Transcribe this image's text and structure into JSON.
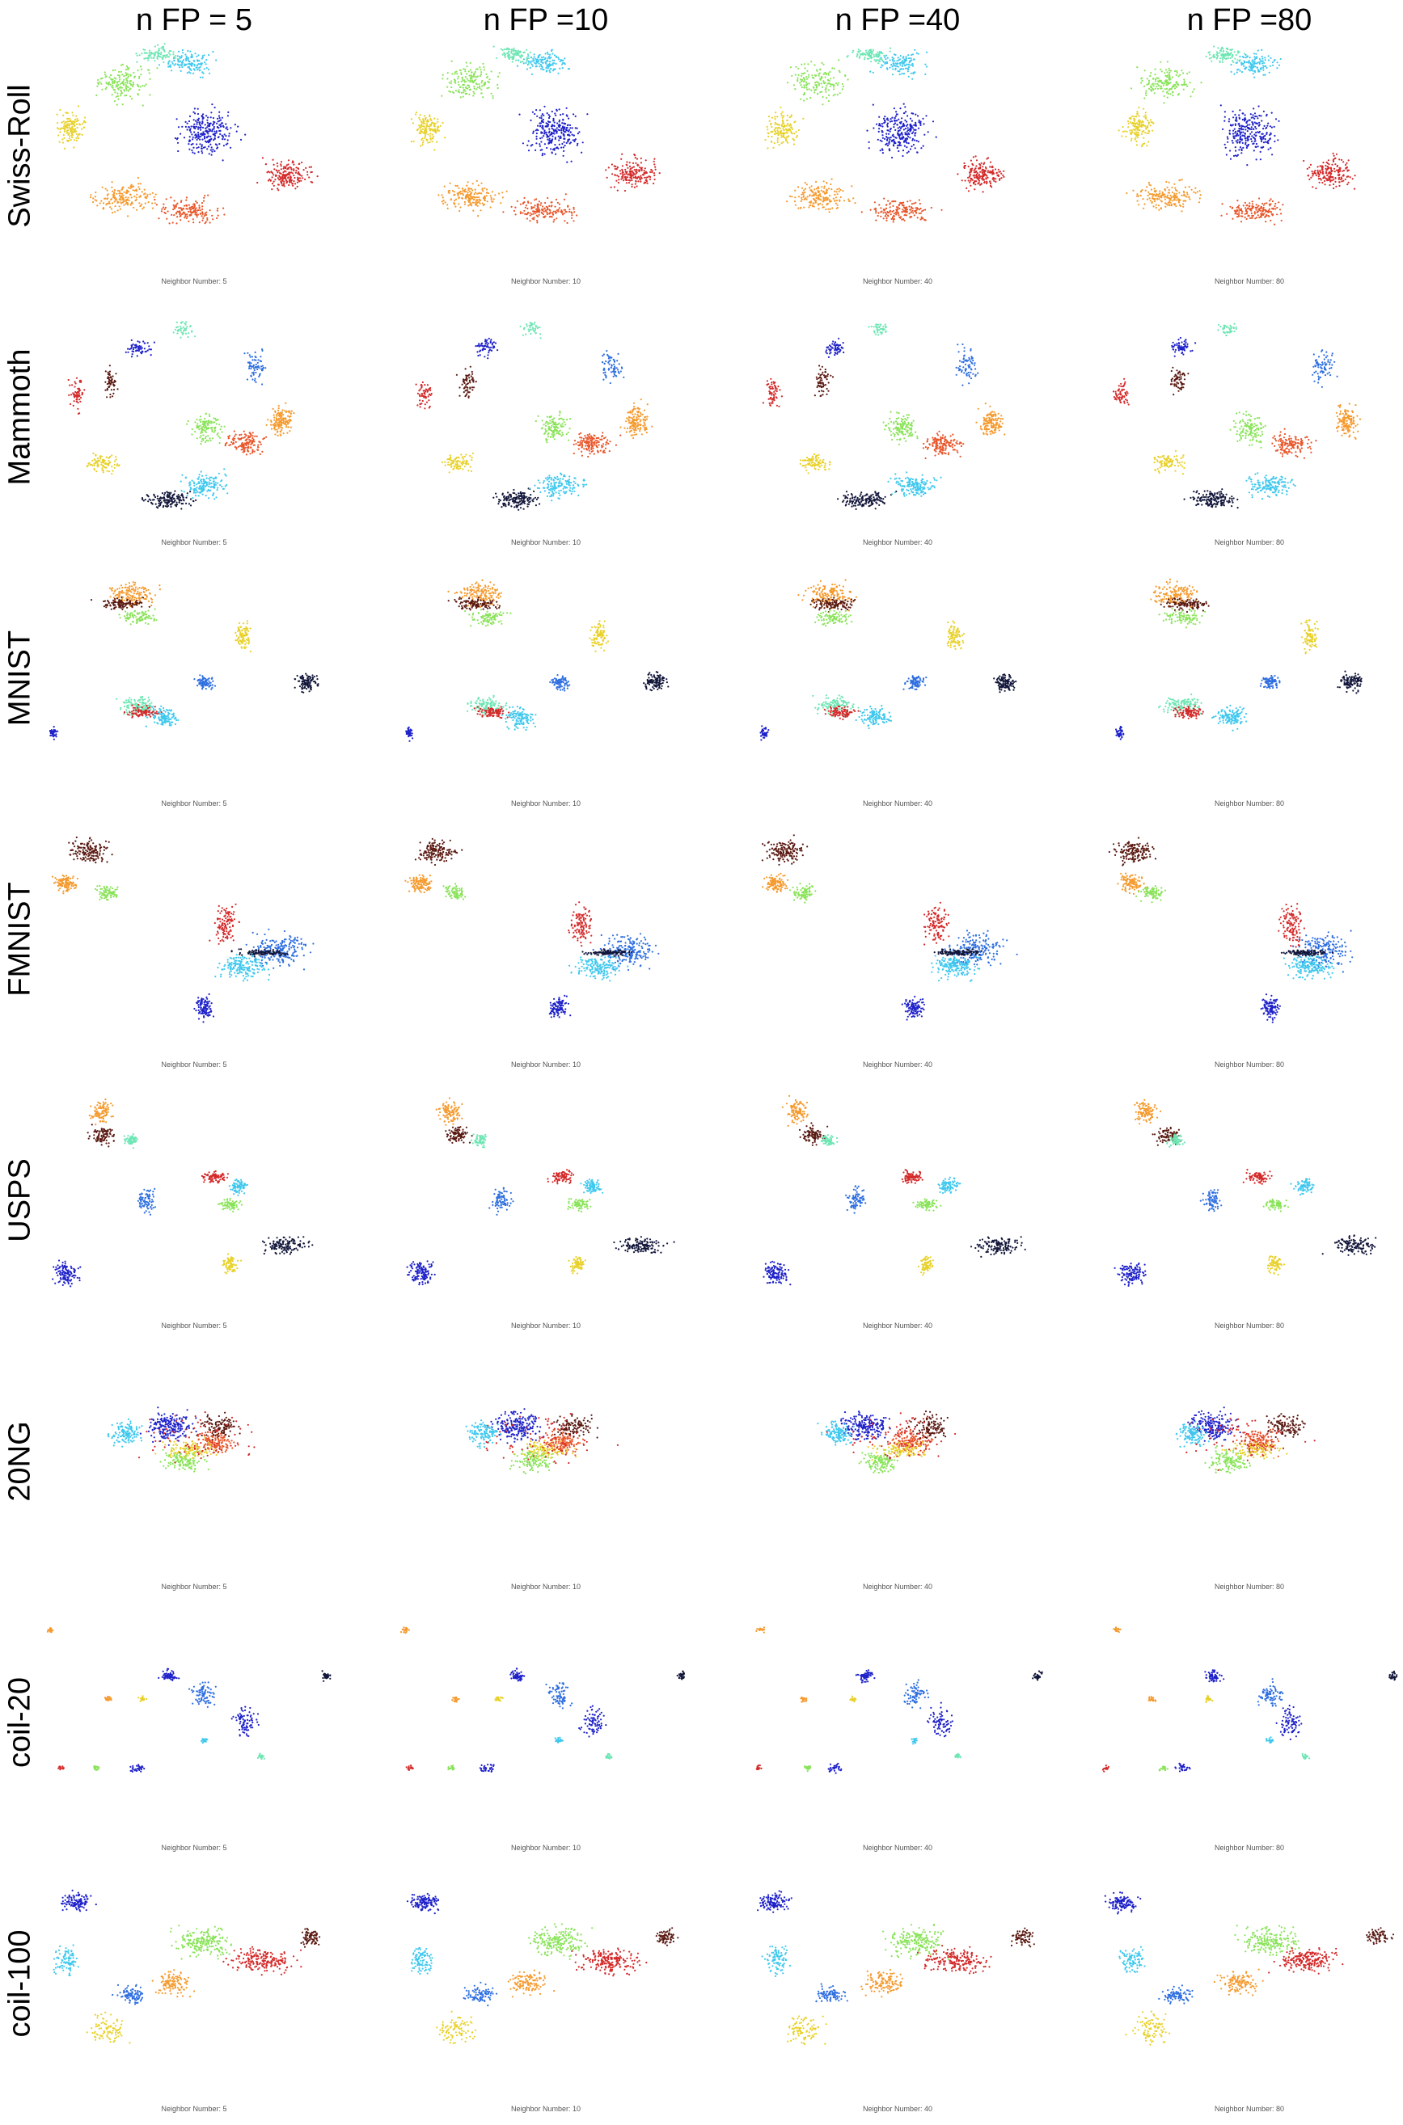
{
  "columns": [
    "n FP = 5",
    "n FP =10",
    "n FP =40",
    "n FP =80"
  ],
  "rows": [
    "Swiss-Roll",
    "Mammoth",
    "MNIST",
    "FMNIST",
    "USPS",
    "20NG",
    "coil-20",
    "coil-100"
  ],
  "panel_labels": [
    "Neighbor Number: 5",
    "Neighbor Number: 10",
    "Neighbor Number: 40",
    "Neighbor Number: 80"
  ],
  "colors": [
    "#1f22c9",
    "#2f6fe0",
    "#3fc8ee",
    "#6ee6b4",
    "#8ae35a",
    "#e8d12a",
    "#f59a2e",
    "#e8562a",
    "#d42a2a",
    "#5a1a12",
    "#12163a"
  ],
  "chart_data": {
    "type": "scatter",
    "layout": "grid of embedding scatter plots, 8 rows × 4 columns",
    "column_titles": [
      "n FP = 5",
      "n FP =10",
      "n FP =40",
      "n FP =80"
    ],
    "row_titles": [
      "Swiss-Roll",
      "Mammoth",
      "MNIST",
      "FMNIST",
      "USPS",
      "20NG",
      "coil-20",
      "coil-100"
    ],
    "panel_titles": [
      "Neighbor Number: 5",
      "Neighbor Number: 10",
      "Neighbor Number: 40",
      "Neighbor Number: 80"
    ],
    "neighbor_numbers": [
      5,
      10,
      40,
      80
    ],
    "axes_visible": false,
    "grid": false,
    "legend": "none"
  }
}
